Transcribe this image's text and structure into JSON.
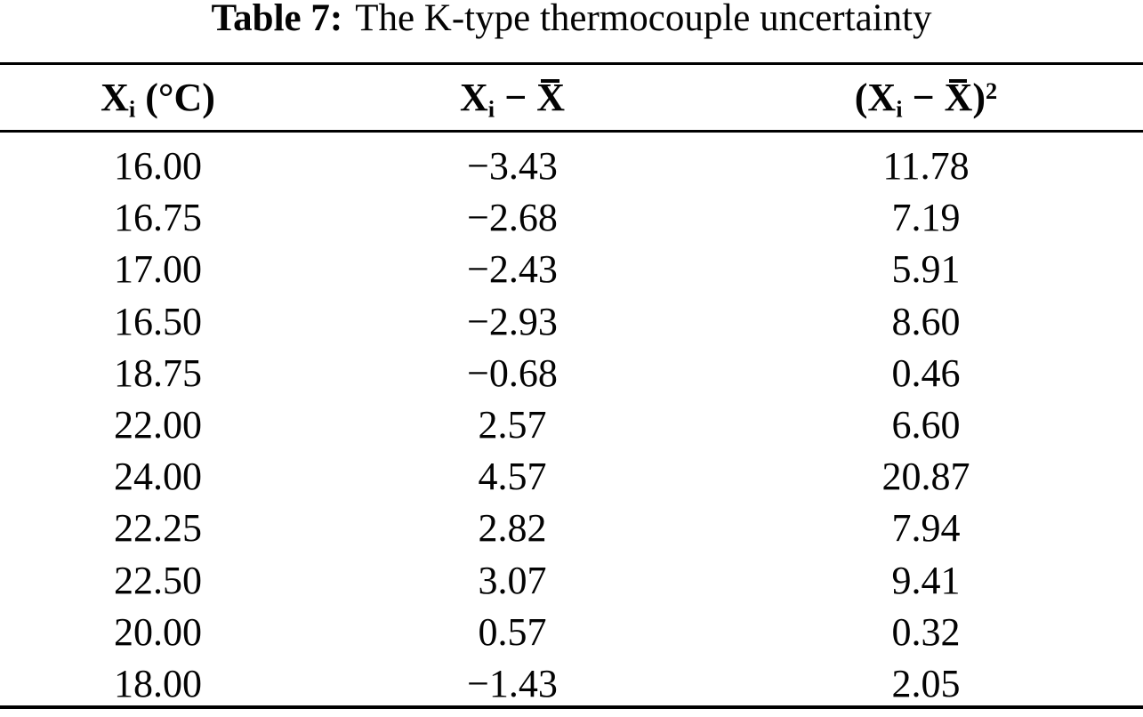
{
  "page": {
    "background": "#ffffff",
    "text_color": "#030303"
  },
  "title": {
    "label": "Table 7:",
    "text": "The K-type thermocouple uncertainty"
  },
  "header": {
    "col1": {
      "x": "X",
      "sub": "i",
      "rest": " (°C)"
    },
    "col2": {
      "x": "X",
      "sub": "i",
      "minus": " − ",
      "xbar": "X"
    },
    "col3": {
      "open": "(",
      "x": "X",
      "sub": "i",
      "minus": " − ",
      "xbar": "X",
      "close": ")",
      "sup": "2"
    }
  },
  "rows": [
    [
      "16.00",
      "−3.43",
      "11.78"
    ],
    [
      "16.75",
      "−2.68",
      "7.19"
    ],
    [
      "17.00",
      "−2.43",
      "5.91"
    ],
    [
      "16.50",
      "−2.93",
      "8.60"
    ],
    [
      "18.75",
      "−0.68",
      "0.46"
    ],
    [
      "22.00",
      "2.57",
      "6.60"
    ],
    [
      "24.00",
      "4.57",
      "20.87"
    ],
    [
      "22.25",
      "2.82",
      "7.94"
    ],
    [
      "22.50",
      "3.07",
      "9.41"
    ],
    [
      "20.00",
      "0.57",
      "0.32"
    ],
    [
      "18.00",
      "−1.43",
      "2.05"
    ]
  ],
  "chart_data": {
    "type": "table",
    "title": "Table 7: The K-type thermocouple uncertainty",
    "columns": [
      "Xi (°C)",
      "Xi − X̄",
      "(Xi − X̄)²"
    ],
    "rows": [
      [
        16.0,
        -3.43,
        11.78
      ],
      [
        16.75,
        -2.68,
        7.19
      ],
      [
        17.0,
        -2.43,
        5.91
      ],
      [
        16.5,
        -2.93,
        8.6
      ],
      [
        18.75,
        -0.68,
        0.46
      ],
      [
        22.0,
        2.57,
        6.6
      ],
      [
        24.0,
        4.57,
        20.87
      ],
      [
        22.25,
        2.82,
        7.94
      ],
      [
        22.5,
        3.07,
        9.41
      ],
      [
        20.0,
        0.57,
        0.32
      ],
      [
        18.0,
        -1.43,
        2.05
      ]
    ]
  }
}
